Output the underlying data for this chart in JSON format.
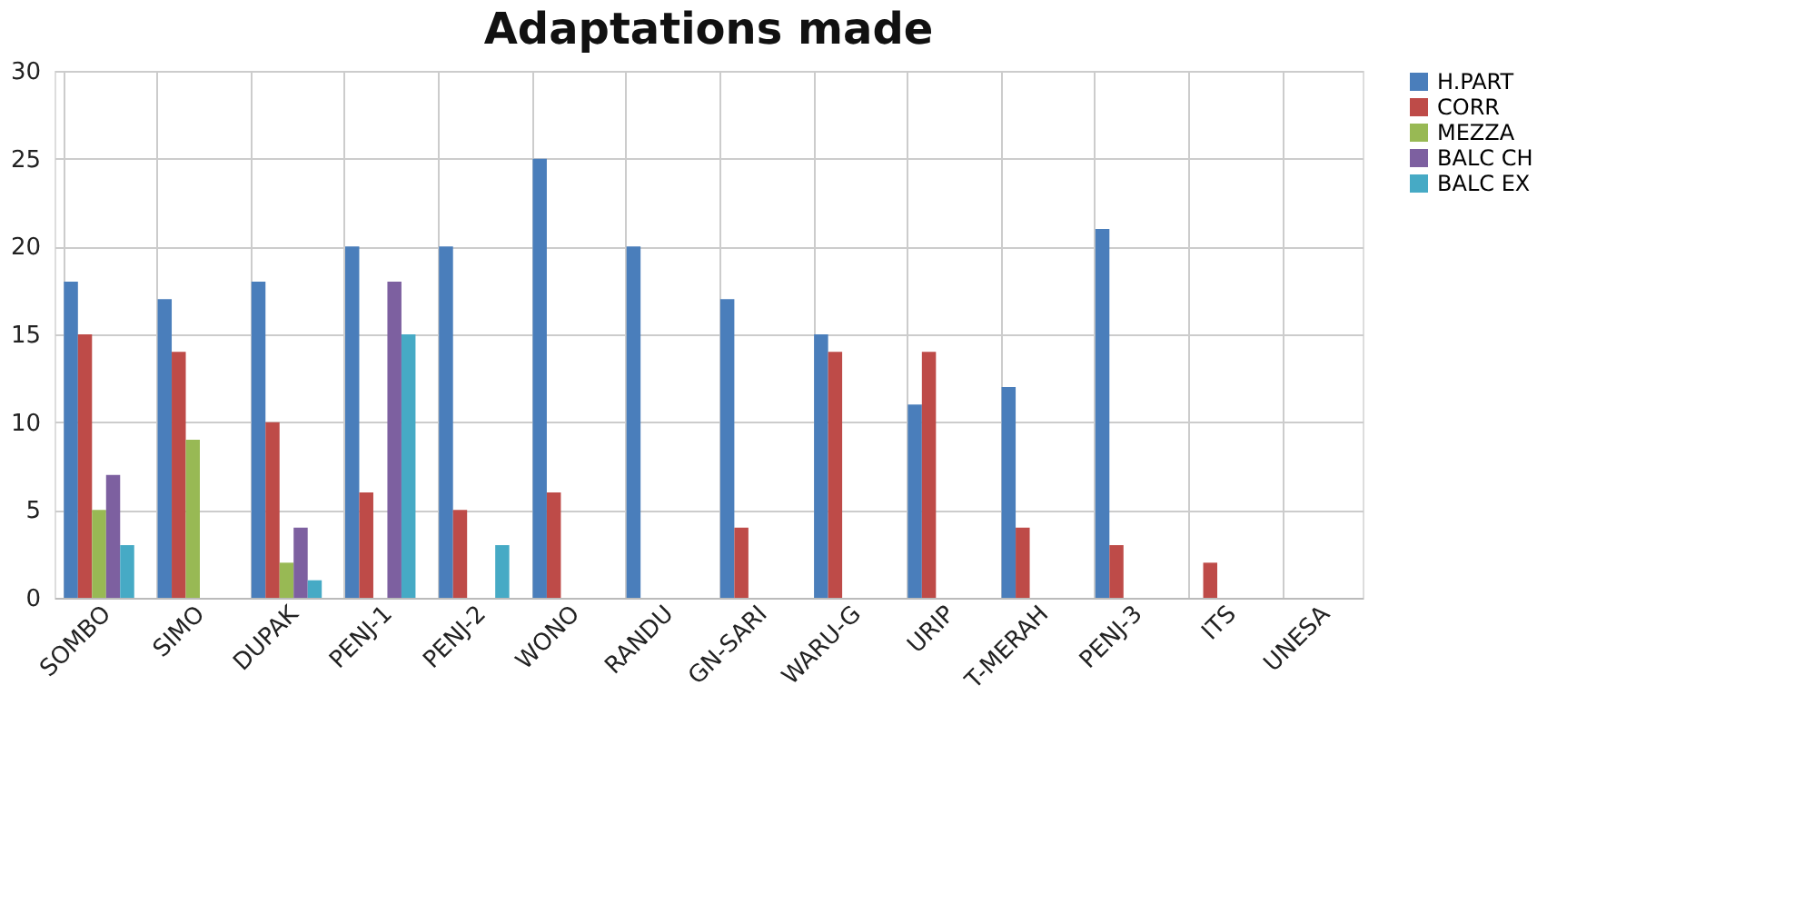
{
  "chart_data": {
    "type": "bar",
    "title": "Adaptations made",
    "categories": [
      "SOMBO",
      "SIMO",
      "DUPAK",
      "PENJ-1",
      "PENJ-2",
      "WONO",
      "RANDU",
      "GN-SARI",
      "WARU-G",
      "URIP",
      "T-MERAH",
      "PENJ-3",
      "ITS",
      "UNESA"
    ],
    "series": [
      {
        "name": "H.PART",
        "color": "#4a7ebb",
        "values": [
          18,
          17,
          18,
          20,
          20,
          25,
          20,
          17,
          15,
          11,
          12,
          21,
          0,
          0
        ]
      },
      {
        "name": "CORR",
        "color": "#be4b48",
        "values": [
          15,
          14,
          10,
          6,
          5,
          6,
          0,
          4,
          14,
          14,
          4,
          3,
          2,
          0
        ]
      },
      {
        "name": "MEZZA",
        "color": "#98b954",
        "values": [
          5,
          9,
          2,
          0,
          0,
          0,
          0,
          0,
          0,
          0,
          0,
          0,
          0,
          0
        ]
      },
      {
        "name": "BALC CH",
        "color": "#7d60a0",
        "values": [
          7,
          0,
          4,
          18,
          0,
          0,
          0,
          0,
          0,
          0,
          0,
          0,
          0,
          0
        ]
      },
      {
        "name": "BALC EX",
        "color": "#46aac5",
        "values": [
          3,
          0,
          1,
          15,
          3,
          0,
          0,
          0,
          0,
          0,
          0,
          0,
          0,
          0
        ]
      }
    ],
    "ylim": [
      0,
      30
    ],
    "yticks": [
      0,
      5,
      10,
      15,
      20,
      25,
      30
    ],
    "grid": true,
    "legend": "right"
  }
}
